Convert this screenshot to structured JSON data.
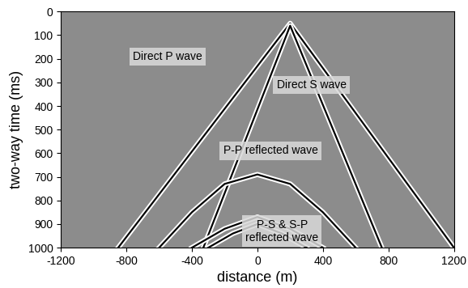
{
  "chart_data": {
    "type": "line",
    "x_label": "distance (m)",
    "y_label": "two-way time (ms)",
    "xlim": [
      -1200,
      1200
    ],
    "xticks": [
      -1200,
      -800,
      -400,
      0,
      400,
      800,
      1200
    ],
    "ylim": [
      1000,
      0
    ],
    "yticks": [
      0,
      100,
      200,
      300,
      400,
      500,
      600,
      700,
      800,
      900,
      1000
    ],
    "grid": false,
    "annotations": [
      "Direct P wave",
      "Direct S wave",
      "P-P reflected wave",
      "P-S & S-P\nreflected wave"
    ],
    "series": [
      {
        "color": "black",
        "x": [
          -850,
          200,
          1200
        ],
        "values": [
          1000,
          50,
          1000
        ]
      },
      {
        "color": "black",
        "x": [
          -330,
          200,
          760
        ],
        "values": [
          1000,
          60,
          1000
        ]
      },
      {
        "color": "black",
        "x": [
          -600,
          -400,
          -200,
          0,
          200,
          400,
          600
        ],
        "values": [
          1000,
          850,
          730,
          690,
          730,
          850,
          1000
        ]
      },
      {
        "color": "black",
        "x": [
          -400,
          -200,
          0,
          200,
          400
        ],
        "values": [
          1000,
          920,
          870,
          920,
          1000
        ]
      },
      {
        "color": "black",
        "x": [
          -300,
          -150,
          0,
          150,
          300
        ],
        "values": [
          1000,
          940,
          900,
          940,
          1000
        ]
      }
    ]
  }
}
